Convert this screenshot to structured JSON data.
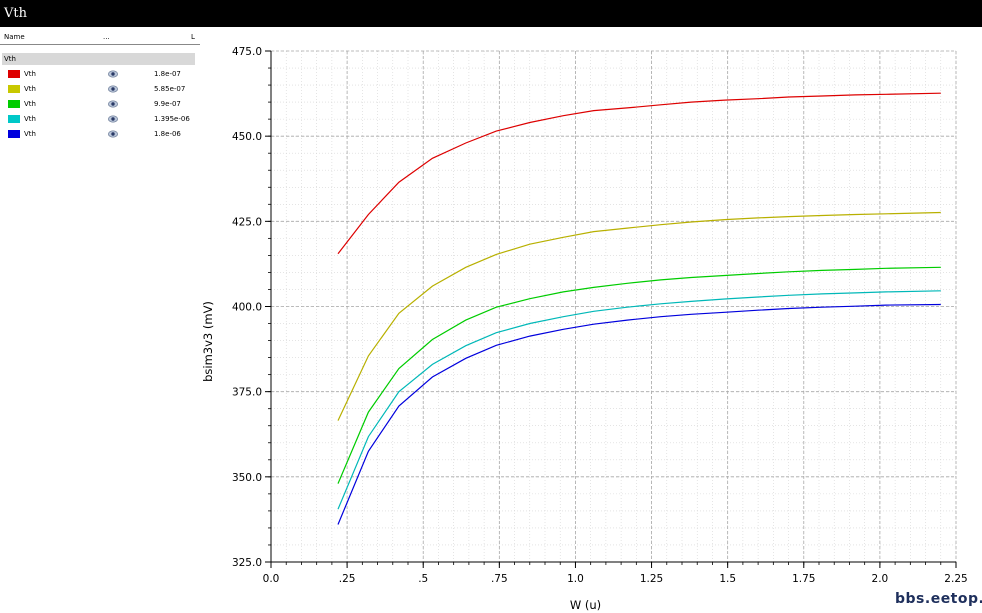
{
  "window": {
    "title": "Vth"
  },
  "legend": {
    "columns": [
      "Name",
      "...",
      "L"
    ],
    "group": "Vth",
    "entries": [
      {
        "name": "Vth",
        "color": "#dd0000",
        "param": "1.8e-07",
        "icon": "eye-icon"
      },
      {
        "name": "Vth",
        "color": "#c8c800",
        "param": "5.85e-07",
        "icon": "eye-icon"
      },
      {
        "name": "Vth",
        "color": "#00cc00",
        "param": "9.9e-07",
        "icon": "eye-icon"
      },
      {
        "name": "Vth",
        "color": "#00c8c8",
        "param": "1.395e-06",
        "icon": "eye-icon"
      },
      {
        "name": "Vth",
        "color": "#0000dd",
        "param": "1.8e-06",
        "icon": "eye-icon"
      }
    ]
  },
  "chart_data": {
    "type": "line",
    "xlabel": "W (u)",
    "ylabel": "bsim3v3 (mV)",
    "xlim": [
      0,
      2.25
    ],
    "ylim": [
      325,
      475
    ],
    "xticks": [
      {
        "value": 0,
        "label": "0.0"
      },
      {
        "value": 0.25,
        "label": ".25"
      },
      {
        "value": 0.5,
        "label": ".5"
      },
      {
        "value": 0.75,
        "label": ".75"
      },
      {
        "value": 1.0,
        "label": "1.0"
      },
      {
        "value": 1.25,
        "label": "1.25"
      },
      {
        "value": 1.5,
        "label": "1.5"
      },
      {
        "value": 1.75,
        "label": "1.75"
      },
      {
        "value": 2.0,
        "label": "2.0"
      },
      {
        "value": 2.25,
        "label": "2.25"
      }
    ],
    "yticks": [
      {
        "value": 325,
        "label": "325.0"
      },
      {
        "value": 350,
        "label": "350.0"
      },
      {
        "value": 375,
        "label": "375.0"
      },
      {
        "value": 400,
        "label": "400.0"
      },
      {
        "value": 425,
        "label": "425.0"
      },
      {
        "value": 450,
        "label": "450.0"
      },
      {
        "value": 475,
        "label": "475.0"
      }
    ],
    "grid": true,
    "x": [
      0.22,
      0.32,
      0.42,
      0.53,
      0.64,
      0.74,
      0.85,
      0.96,
      1.06,
      1.17,
      1.28,
      1.38,
      1.49,
      1.6,
      1.7,
      1.81,
      1.92,
      2.02,
      2.2
    ],
    "series": [
      {
        "name": "1.8e-07",
        "color": "#dd0000",
        "values": [
          415.5,
          427.0,
          436.5,
          443.5,
          448.0,
          451.5,
          454.0,
          456.0,
          457.5,
          458.3,
          459.2,
          460.0,
          460.6,
          461.0,
          461.5,
          461.8,
          462.1,
          462.3,
          462.6
        ]
      },
      {
        "name": "5.85e-07",
        "color": "#b8b000",
        "values": [
          366.5,
          385.5,
          398.0,
          406.0,
          411.5,
          415.3,
          418.3,
          420.3,
          422.0,
          423.0,
          424.0,
          424.8,
          425.5,
          426.0,
          426.4,
          426.7,
          427.0,
          427.2,
          427.6
        ]
      },
      {
        "name": "9.9e-07",
        "color": "#00cc00",
        "values": [
          348.0,
          369.0,
          381.8,
          390.3,
          396.0,
          399.8,
          402.3,
          404.3,
          405.6,
          406.8,
          407.8,
          408.5,
          409.1,
          409.7,
          410.2,
          410.6,
          410.9,
          411.2,
          411.5
        ]
      },
      {
        "name": "1.395e-06",
        "color": "#00b8b8",
        "values": [
          340.5,
          361.8,
          375.0,
          383.0,
          388.5,
          392.3,
          395.0,
          397.0,
          398.6,
          399.8,
          400.8,
          401.5,
          402.2,
          402.8,
          403.3,
          403.7,
          404.0,
          404.3,
          404.6
        ]
      },
      {
        "name": "1.8e-06",
        "color": "#0000dd",
        "values": [
          336.0,
          357.5,
          370.8,
          379.3,
          384.8,
          388.6,
          391.3,
          393.3,
          394.8,
          396.0,
          397.0,
          397.7,
          398.3,
          398.9,
          399.4,
          399.8,
          400.1,
          400.4,
          400.6
        ]
      }
    ]
  },
  "watermark": "bbs.eetop.cn"
}
